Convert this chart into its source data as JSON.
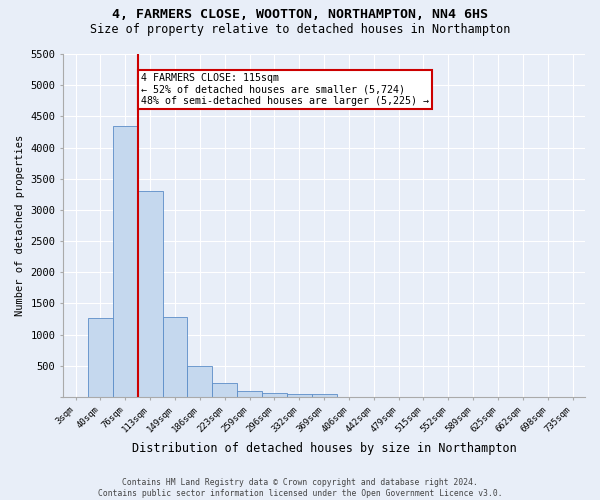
{
  "title_line1": "4, FARMERS CLOSE, WOOTTON, NORTHAMPTON, NN4 6HS",
  "title_line2": "Size of property relative to detached houses in Northampton",
  "xlabel": "Distribution of detached houses by size in Northampton",
  "ylabel": "Number of detached properties",
  "bar_color": "#c5d8ee",
  "bar_edge_color": "#5b8dc8",
  "background_color": "#e8eef8",
  "grid_color": "#ffffff",
  "categories": [
    "3sqm",
    "40sqm",
    "76sqm",
    "113sqm",
    "149sqm",
    "186sqm",
    "223sqm",
    "259sqm",
    "296sqm",
    "332sqm",
    "369sqm",
    "406sqm",
    "442sqm",
    "479sqm",
    "515sqm",
    "552sqm",
    "589sqm",
    "625sqm",
    "662sqm",
    "698sqm",
    "735sqm"
  ],
  "values": [
    0,
    1270,
    4340,
    3300,
    1280,
    490,
    215,
    90,
    65,
    50,
    50,
    0,
    0,
    0,
    0,
    0,
    0,
    0,
    0,
    0,
    0
  ],
  "ylim": [
    0,
    5500
  ],
  "yticks": [
    0,
    500,
    1000,
    1500,
    2000,
    2500,
    3000,
    3500,
    4000,
    4500,
    5000,
    5500
  ],
  "annotation_text_line1": "4 FARMERS CLOSE: 115sqm",
  "annotation_text_line2": "← 52% of detached houses are smaller (5,724)",
  "annotation_text_line3": "48% of semi-detached houses are larger (5,225) →",
  "annotation_box_color": "#ffffff",
  "annotation_border_color": "#cc0000",
  "vline_color": "#cc0000",
  "vline_x": 2.5,
  "footer_line1": "Contains HM Land Registry data © Crown copyright and database right 2024.",
  "footer_line2": "Contains public sector information licensed under the Open Government Licence v3.0."
}
